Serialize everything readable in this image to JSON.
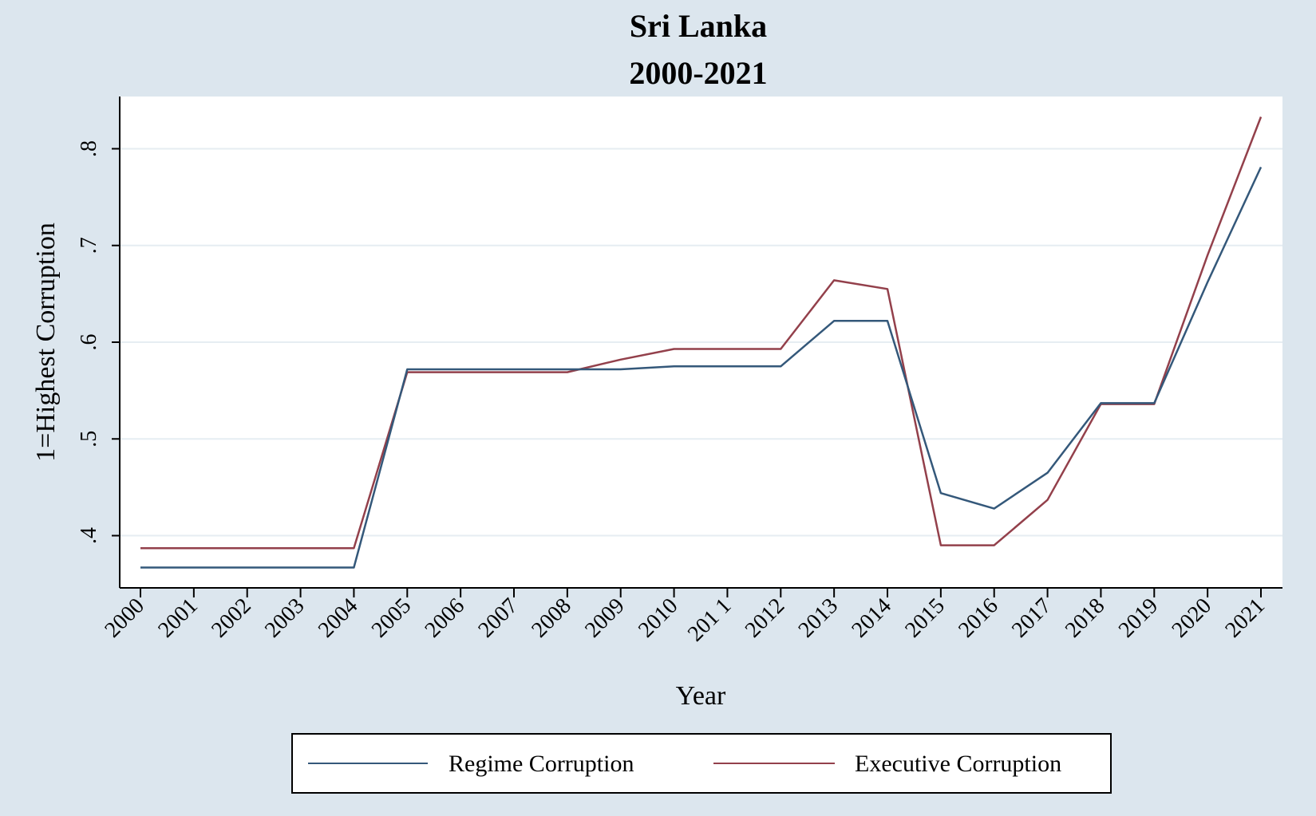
{
  "chart_data": {
    "type": "line",
    "title": "Sri Lanka",
    "subtitle": "2000-2021",
    "xlabel": "Year",
    "ylabel": "1=Highest Corruption",
    "categories": [
      "2000",
      "2001",
      "2002",
      "2003",
      "2004",
      "2005",
      "2006",
      "2007",
      "2008",
      "2009",
      "2010",
      "201 1",
      "2012",
      "2013",
      "2014",
      "2015",
      "2016",
      "2017",
      "2018",
      "2019",
      "2020",
      "2021"
    ],
    "yticks": [
      {
        "value": 0.4,
        "label": ".4"
      },
      {
        "value": 0.5,
        "label": ".5"
      },
      {
        "value": 0.6,
        "label": ".6"
      },
      {
        "value": 0.7,
        "label": ".7"
      },
      {
        "value": 0.8,
        "label": ".8"
      }
    ],
    "ylim": [
      0.346,
      0.854
    ],
    "grid": true,
    "legend_position": "bottom",
    "series": [
      {
        "name": "Regime Corruption",
        "color": "#34587a",
        "values": [
          0.367,
          0.367,
          0.367,
          0.367,
          0.367,
          0.572,
          0.572,
          0.572,
          0.572,
          0.572,
          0.575,
          0.575,
          0.575,
          0.622,
          0.622,
          0.444,
          0.428,
          0.465,
          0.537,
          0.537,
          0.662,
          0.781
        ]
      },
      {
        "name": "Executive Corruption",
        "color": "#93404b",
        "values": [
          0.387,
          0.387,
          0.387,
          0.387,
          0.387,
          0.569,
          0.569,
          0.569,
          0.569,
          0.582,
          0.593,
          0.593,
          0.593,
          0.664,
          0.655,
          0.39,
          0.39,
          0.437,
          0.536,
          0.536,
          0.69,
          0.833
        ]
      }
    ]
  }
}
